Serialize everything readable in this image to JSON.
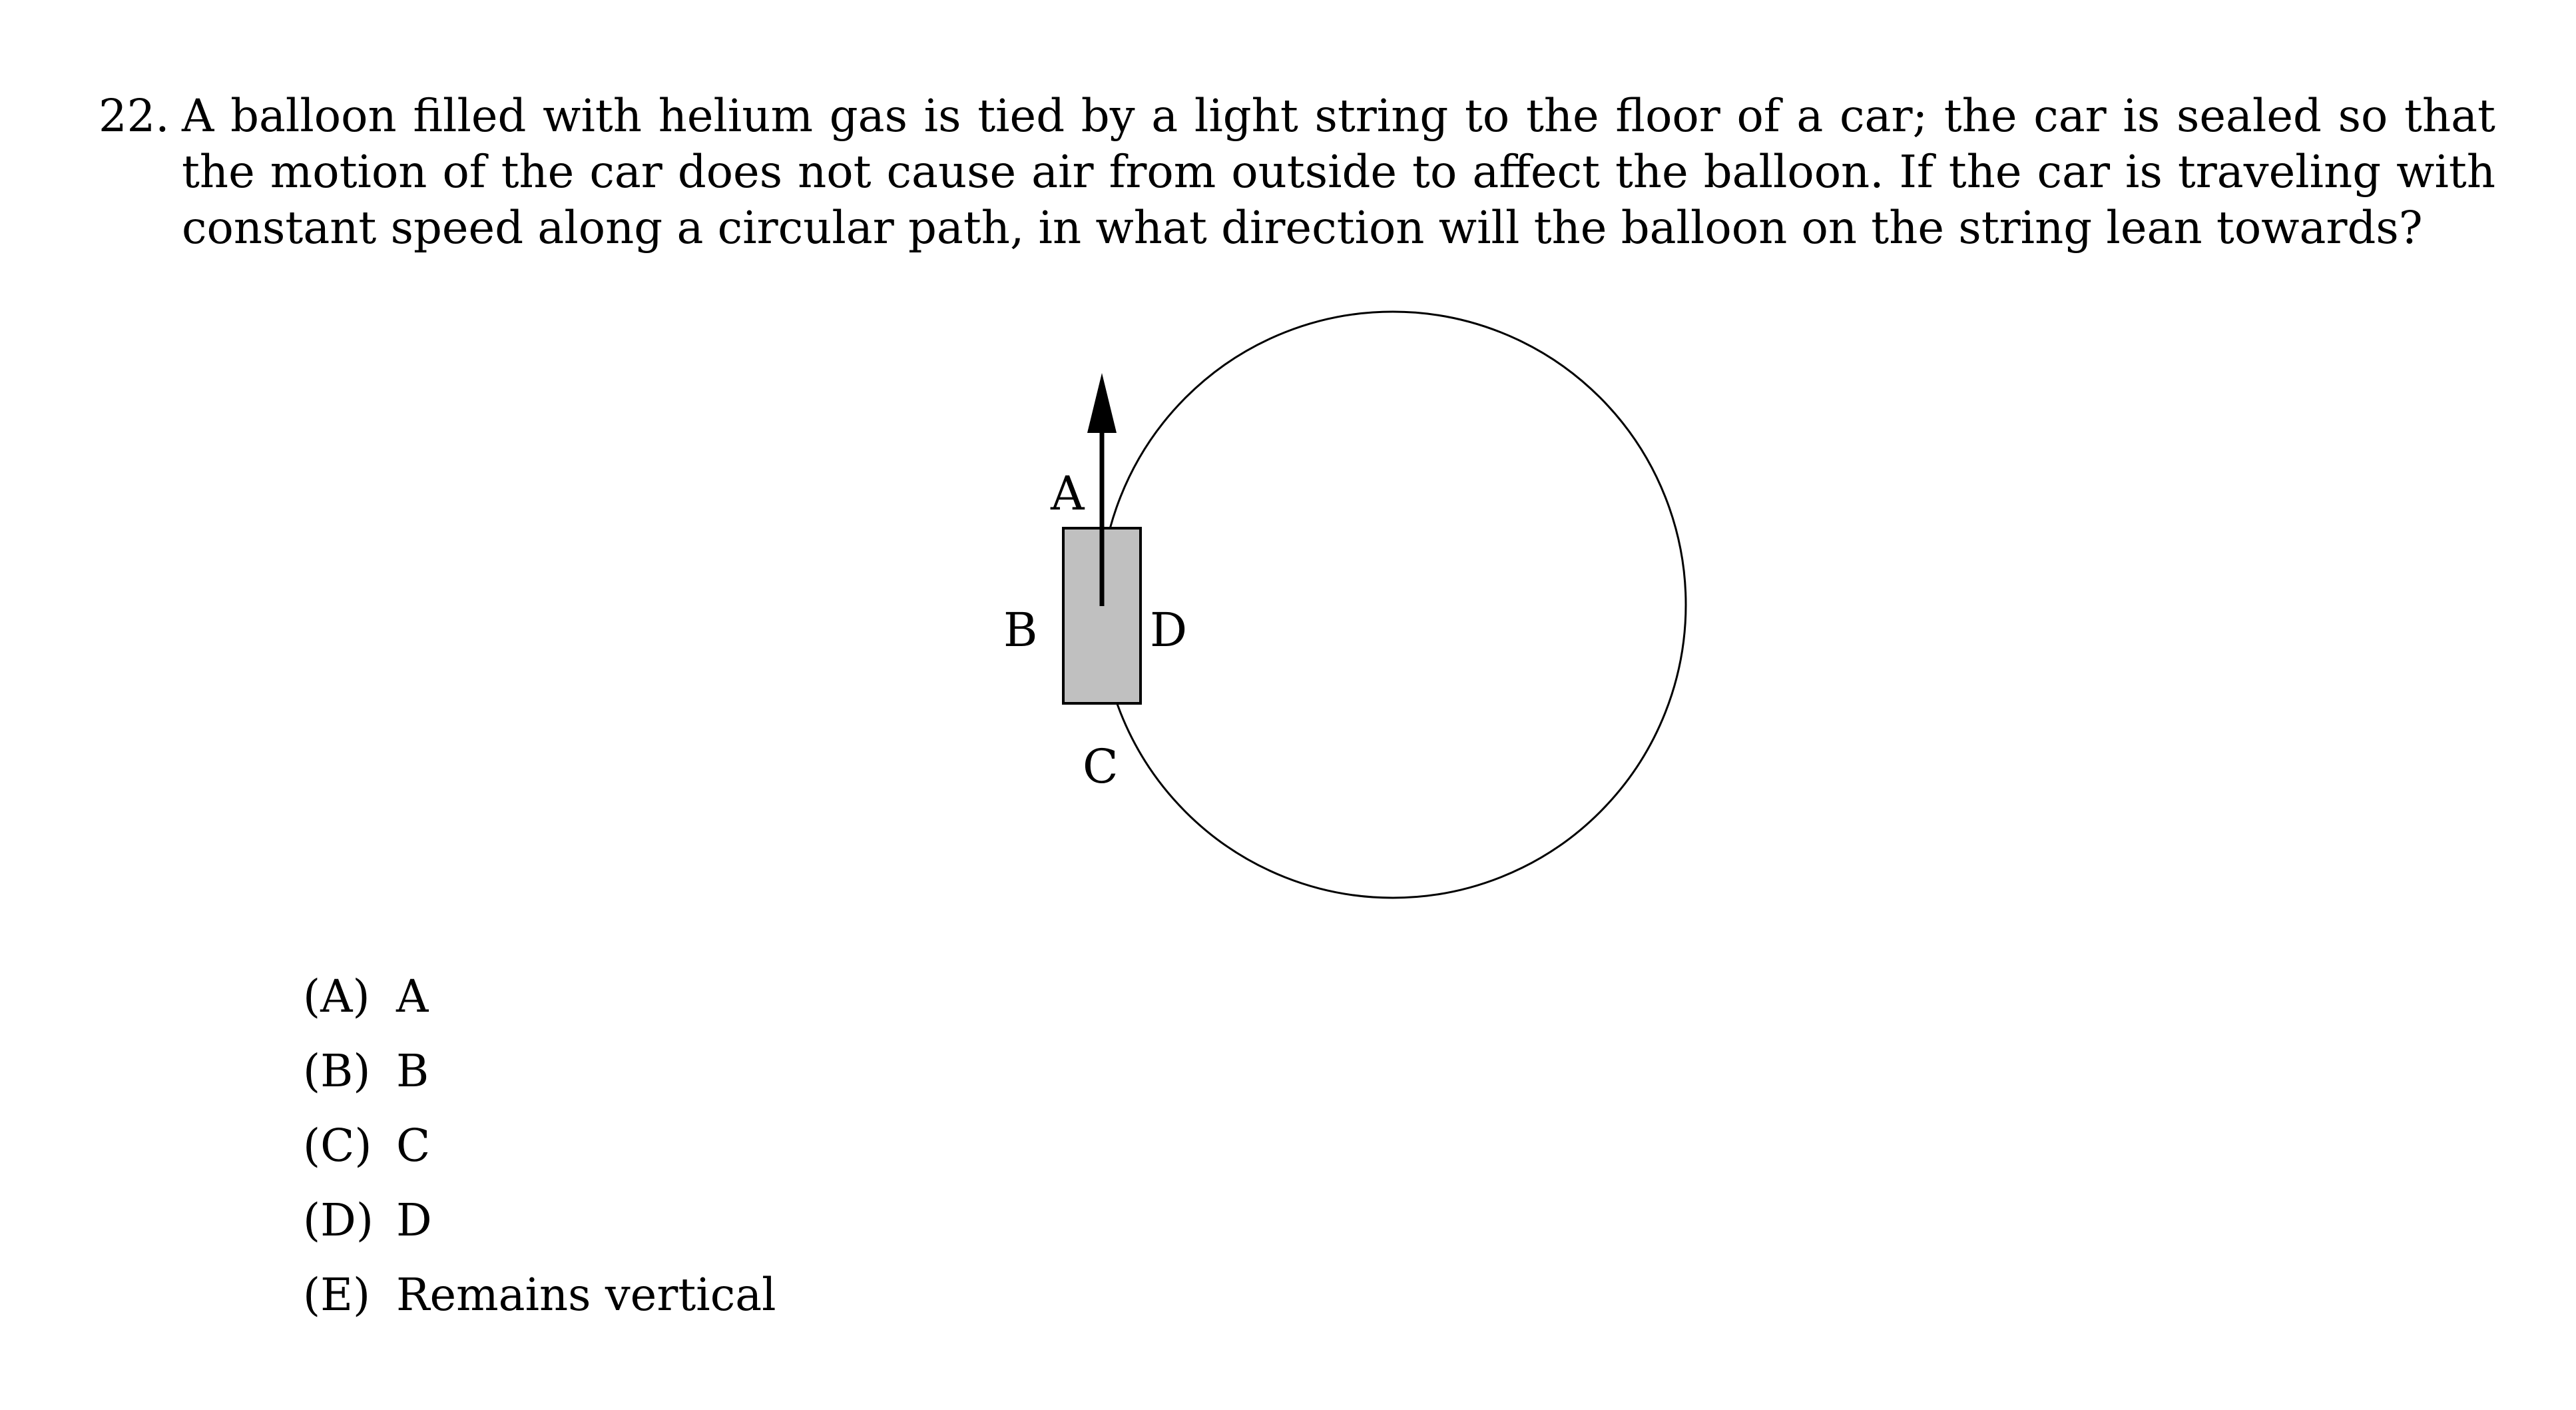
{
  "question": {
    "number": "22.",
    "text": "A balloon filled with helium gas is tied by a light string to the floor of a car; the car is sealed so that the motion of the car does not cause air from outside to affect the balloon. If the car is traveling with constant speed along a circular path, in what direction will the balloon on the string lean towards?"
  },
  "figure": {
    "labels": {
      "a": "A",
      "b": "B",
      "c": "C",
      "d": "D"
    },
    "colors": {
      "car_fill": "#c0c0c0",
      "line": "#000000"
    }
  },
  "choices": [
    {
      "letter": "(A)",
      "text": "A"
    },
    {
      "letter": "(B)",
      "text": "B"
    },
    {
      "letter": "(C)",
      "text": "C"
    },
    {
      "letter": "(D)",
      "text": "D"
    },
    {
      "letter": "(E)",
      "text": "Remains vertical"
    }
  ]
}
